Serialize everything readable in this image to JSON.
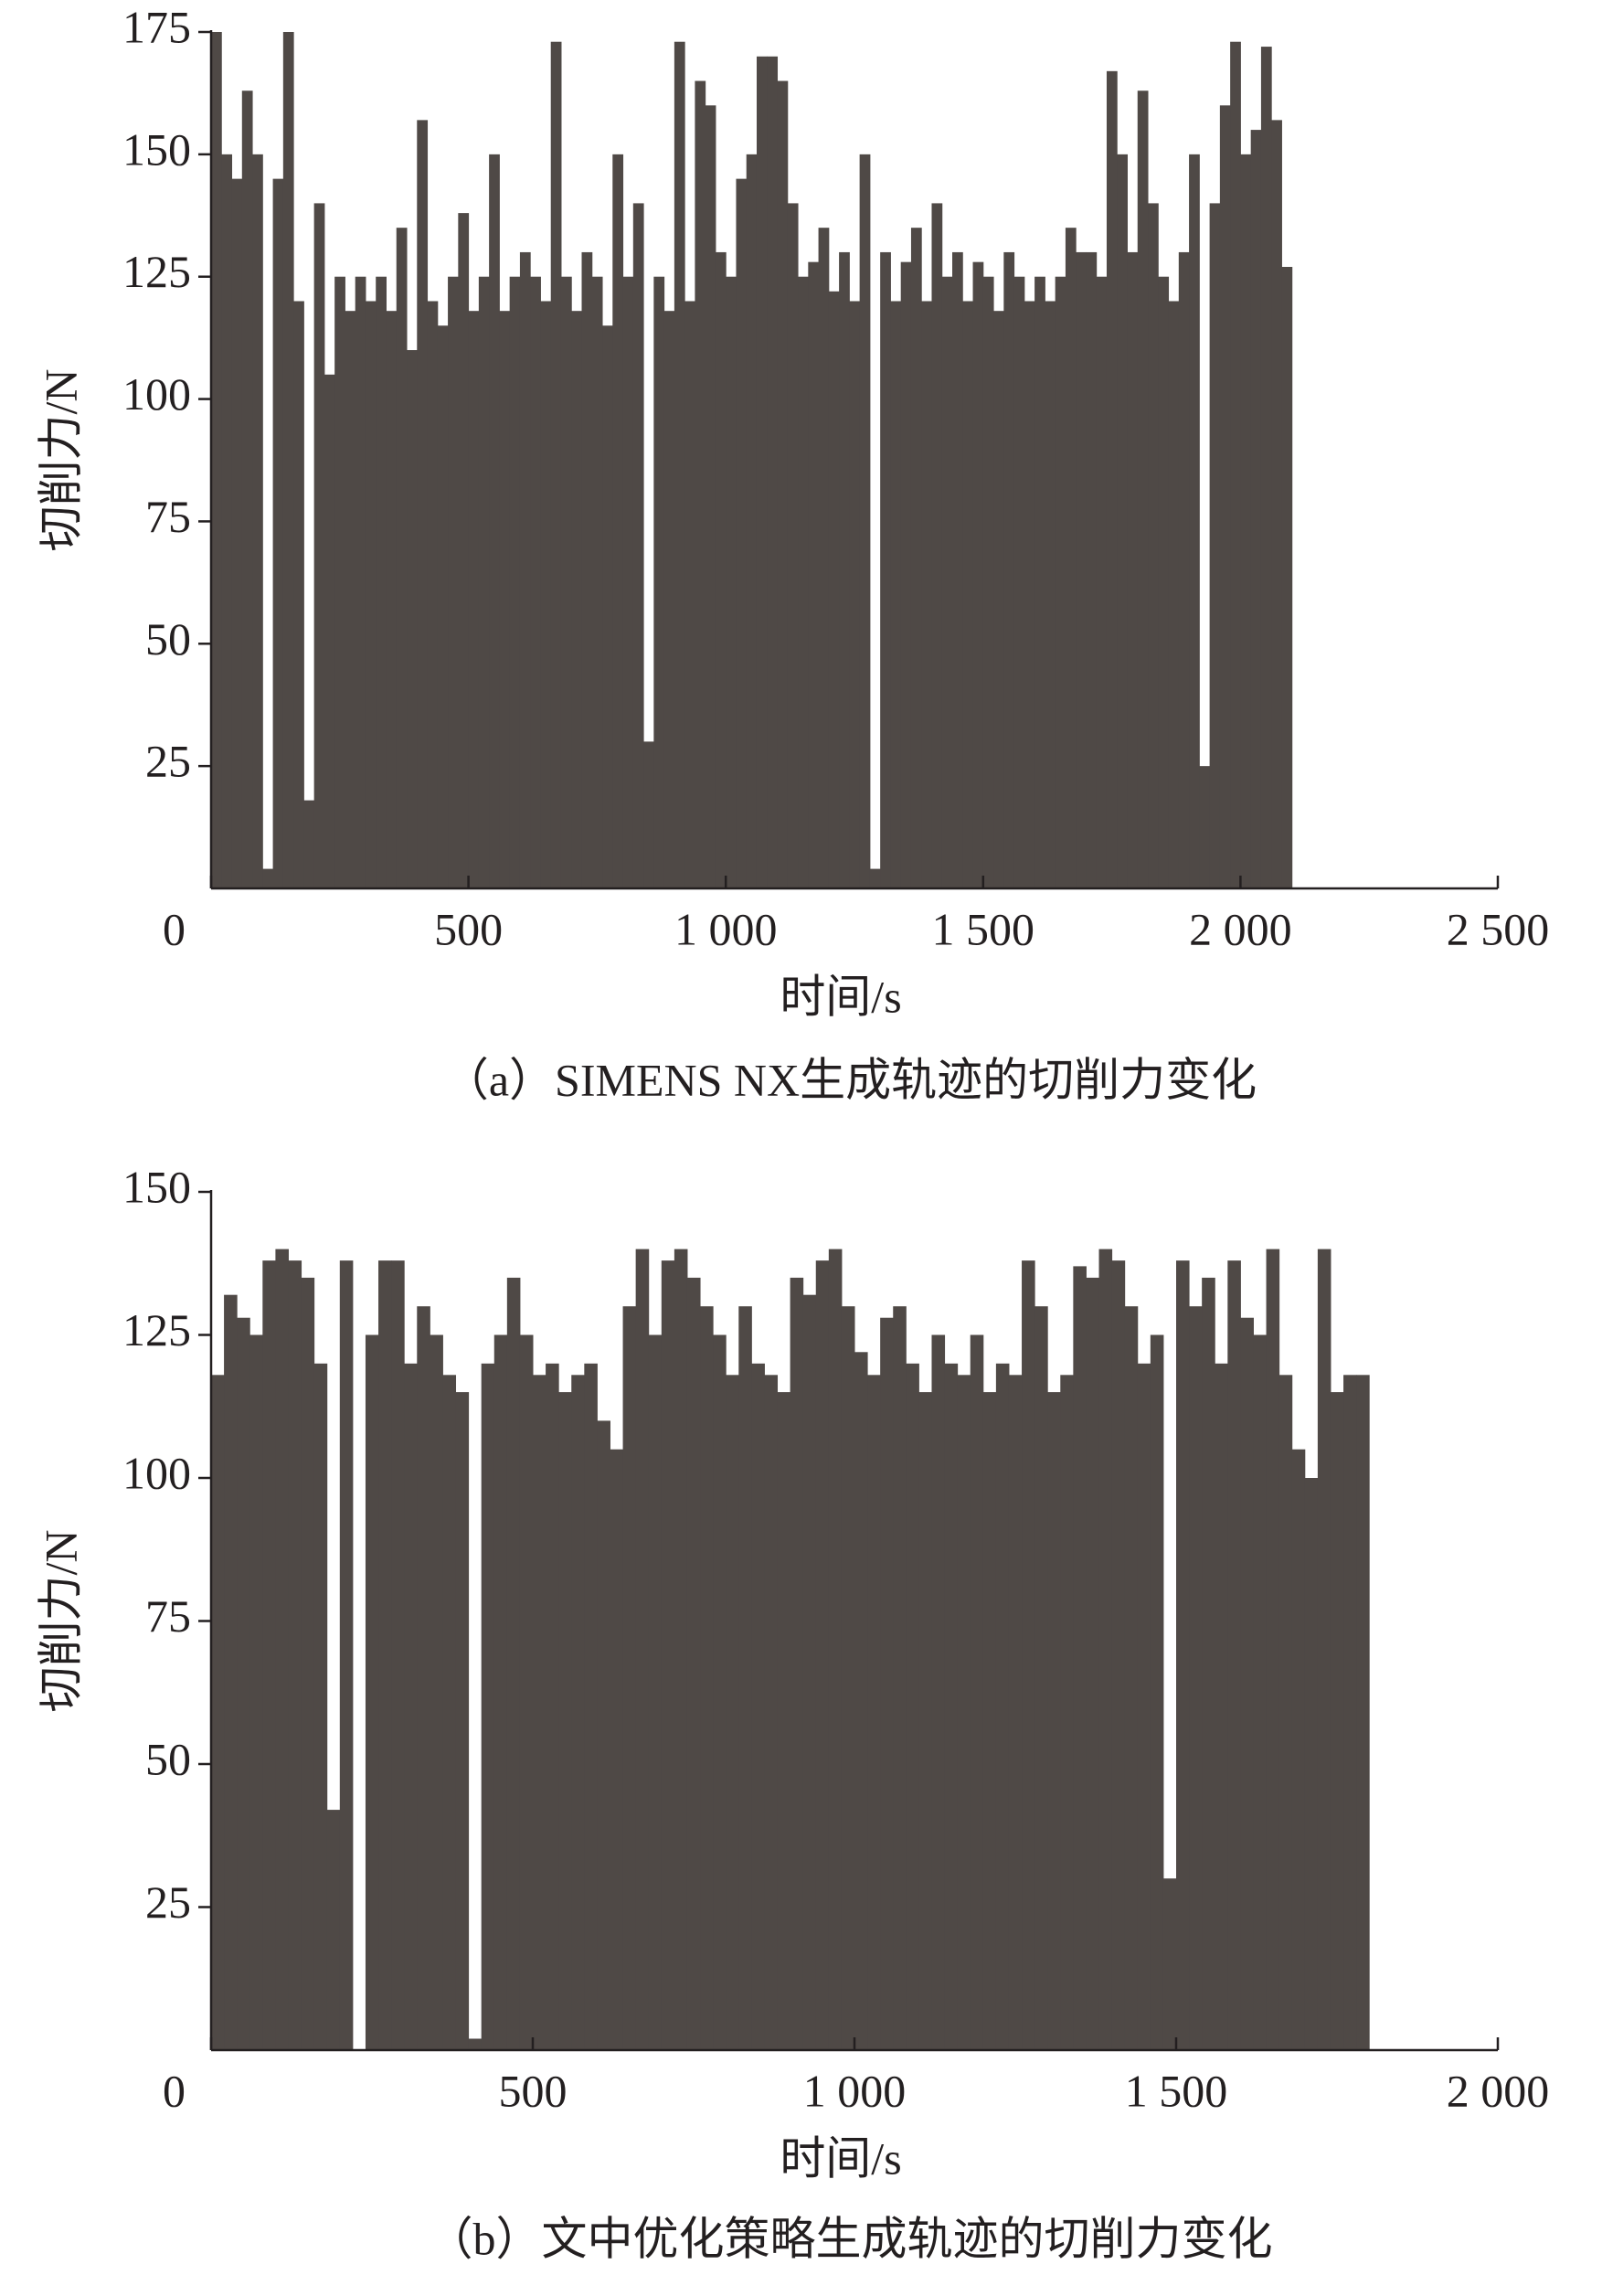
{
  "chart_data": [
    {
      "type": "bar",
      "title": "（a）SIMENS NX生成轨迹的切削力变化",
      "x_label": "时间/s",
      "y_label": "切削力/N",
      "color": "#4f4946",
      "x": [
        0,
        20,
        40,
        60,
        80,
        100,
        120,
        140,
        160,
        180,
        200,
        220,
        240,
        260,
        280,
        300,
        320,
        340,
        360,
        380,
        400,
        420,
        440,
        460,
        480,
        500,
        520,
        540,
        560,
        580,
        600,
        620,
        640,
        660,
        680,
        700,
        720,
        740,
        760,
        780,
        800,
        820,
        840,
        860,
        880,
        900,
        920,
        940,
        960,
        980,
        1000,
        1020,
        1040,
        1060,
        1080,
        1100,
        1120,
        1140,
        1160,
        1180,
        1200,
        1220,
        1240,
        1260,
        1280,
        1300,
        1320,
        1340,
        1360,
        1380,
        1400,
        1420,
        1440,
        1460,
        1480,
        1500,
        1520,
        1540,
        1560,
        1580,
        1600,
        1620,
        1640,
        1660,
        1680,
        1700,
        1720,
        1740,
        1760,
        1780,
        1800,
        1820,
        1840,
        1860,
        1880,
        1900,
        1920,
        1940,
        1960,
        1980,
        2000,
        2020,
        2040,
        2060,
        2080
      ],
      "values": [
        175,
        150,
        145,
        163,
        150,
        4,
        145,
        175,
        120,
        18,
        140,
        105,
        125,
        118,
        125,
        120,
        125,
        118,
        135,
        110,
        157,
        120,
        115,
        125,
        138,
        118,
        125,
        150,
        118,
        125,
        130,
        125,
        120,
        173,
        125,
        118,
        130,
        125,
        115,
        150,
        125,
        140,
        30,
        125,
        118,
        173,
        120,
        165,
        160,
        130,
        125,
        145,
        150,
        170,
        170,
        165,
        140,
        125,
        128,
        135,
        122,
        130,
        120,
        150,
        4,
        130,
        120,
        128,
        135,
        120,
        140,
        125,
        130,
        120,
        128,
        125,
        118,
        130,
        125,
        120,
        125,
        120,
        125,
        135,
        130,
        130,
        125,
        167,
        150,
        130,
        163,
        140,
        125,
        120,
        130,
        150,
        25,
        140,
        160,
        173,
        150,
        155,
        172,
        157,
        127
      ],
      "xlim": [
        0,
        2500
      ],
      "ylim": [
        0,
        175
      ],
      "xticks": [
        0,
        500,
        {
          "value": 1000,
          "label": "1 000"
        },
        {
          "value": 1500,
          "label": "1 500"
        },
        {
          "value": 2000,
          "label": "2 000"
        },
        {
          "value": 2500,
          "label": "2 500"
        }
      ],
      "yticks": [
        25,
        50,
        75,
        100,
        125,
        150,
        175
      ]
    },
    {
      "type": "bar",
      "title": "（b）文中优化策略生成轨迹的切削力变化",
      "x_label": "时间/s",
      "y_label": "切削力/N",
      "color": "#4f4946",
      "x": [
        0,
        20,
        40,
        60,
        80,
        100,
        120,
        140,
        160,
        180,
        200,
        220,
        240,
        260,
        280,
        300,
        320,
        340,
        360,
        380,
        400,
        420,
        440,
        460,
        480,
        500,
        520,
        540,
        560,
        580,
        600,
        620,
        640,
        660,
        680,
        700,
        720,
        740,
        760,
        780,
        800,
        820,
        840,
        860,
        880,
        900,
        920,
        940,
        960,
        980,
        1000,
        1020,
        1040,
        1060,
        1080,
        1100,
        1120,
        1140,
        1160,
        1180,
        1200,
        1220,
        1240,
        1260,
        1280,
        1300,
        1320,
        1340,
        1360,
        1380,
        1400,
        1420,
        1440,
        1460,
        1480,
        1500,
        1520,
        1540,
        1560,
        1580,
        1600,
        1620,
        1640,
        1660,
        1680,
        1700,
        1720,
        1740,
        1760,
        1780
      ],
      "values": [
        118,
        132,
        128,
        125,
        138,
        140,
        138,
        135,
        120,
        42,
        138,
        0,
        125,
        138,
        138,
        120,
        130,
        125,
        118,
        115,
        2,
        120,
        125,
        135,
        125,
        118,
        120,
        115,
        118,
        120,
        110,
        105,
        130,
        140,
        125,
        138,
        140,
        135,
        130,
        125,
        118,
        130,
        120,
        118,
        115,
        135,
        132,
        138,
        140,
        130,
        122,
        118,
        128,
        130,
        120,
        115,
        125,
        120,
        118,
        125,
        115,
        120,
        118,
        138,
        130,
        115,
        118,
        137,
        135,
        140,
        138,
        130,
        120,
        125,
        30,
        138,
        130,
        135,
        120,
        138,
        128,
        125,
        140,
        118,
        105,
        100,
        140,
        115,
        118,
        118
      ],
      "xlim": [
        0,
        2000
      ],
      "ylim": [
        0,
        150
      ],
      "xticks": [
        0,
        500,
        {
          "value": 1000,
          "label": "1 000"
        },
        {
          "value": 1500,
          "label": "1 500"
        },
        {
          "value": 2000,
          "label": "2 000"
        }
      ],
      "yticks": [
        25,
        50,
        75,
        100,
        125,
        150
      ]
    }
  ]
}
